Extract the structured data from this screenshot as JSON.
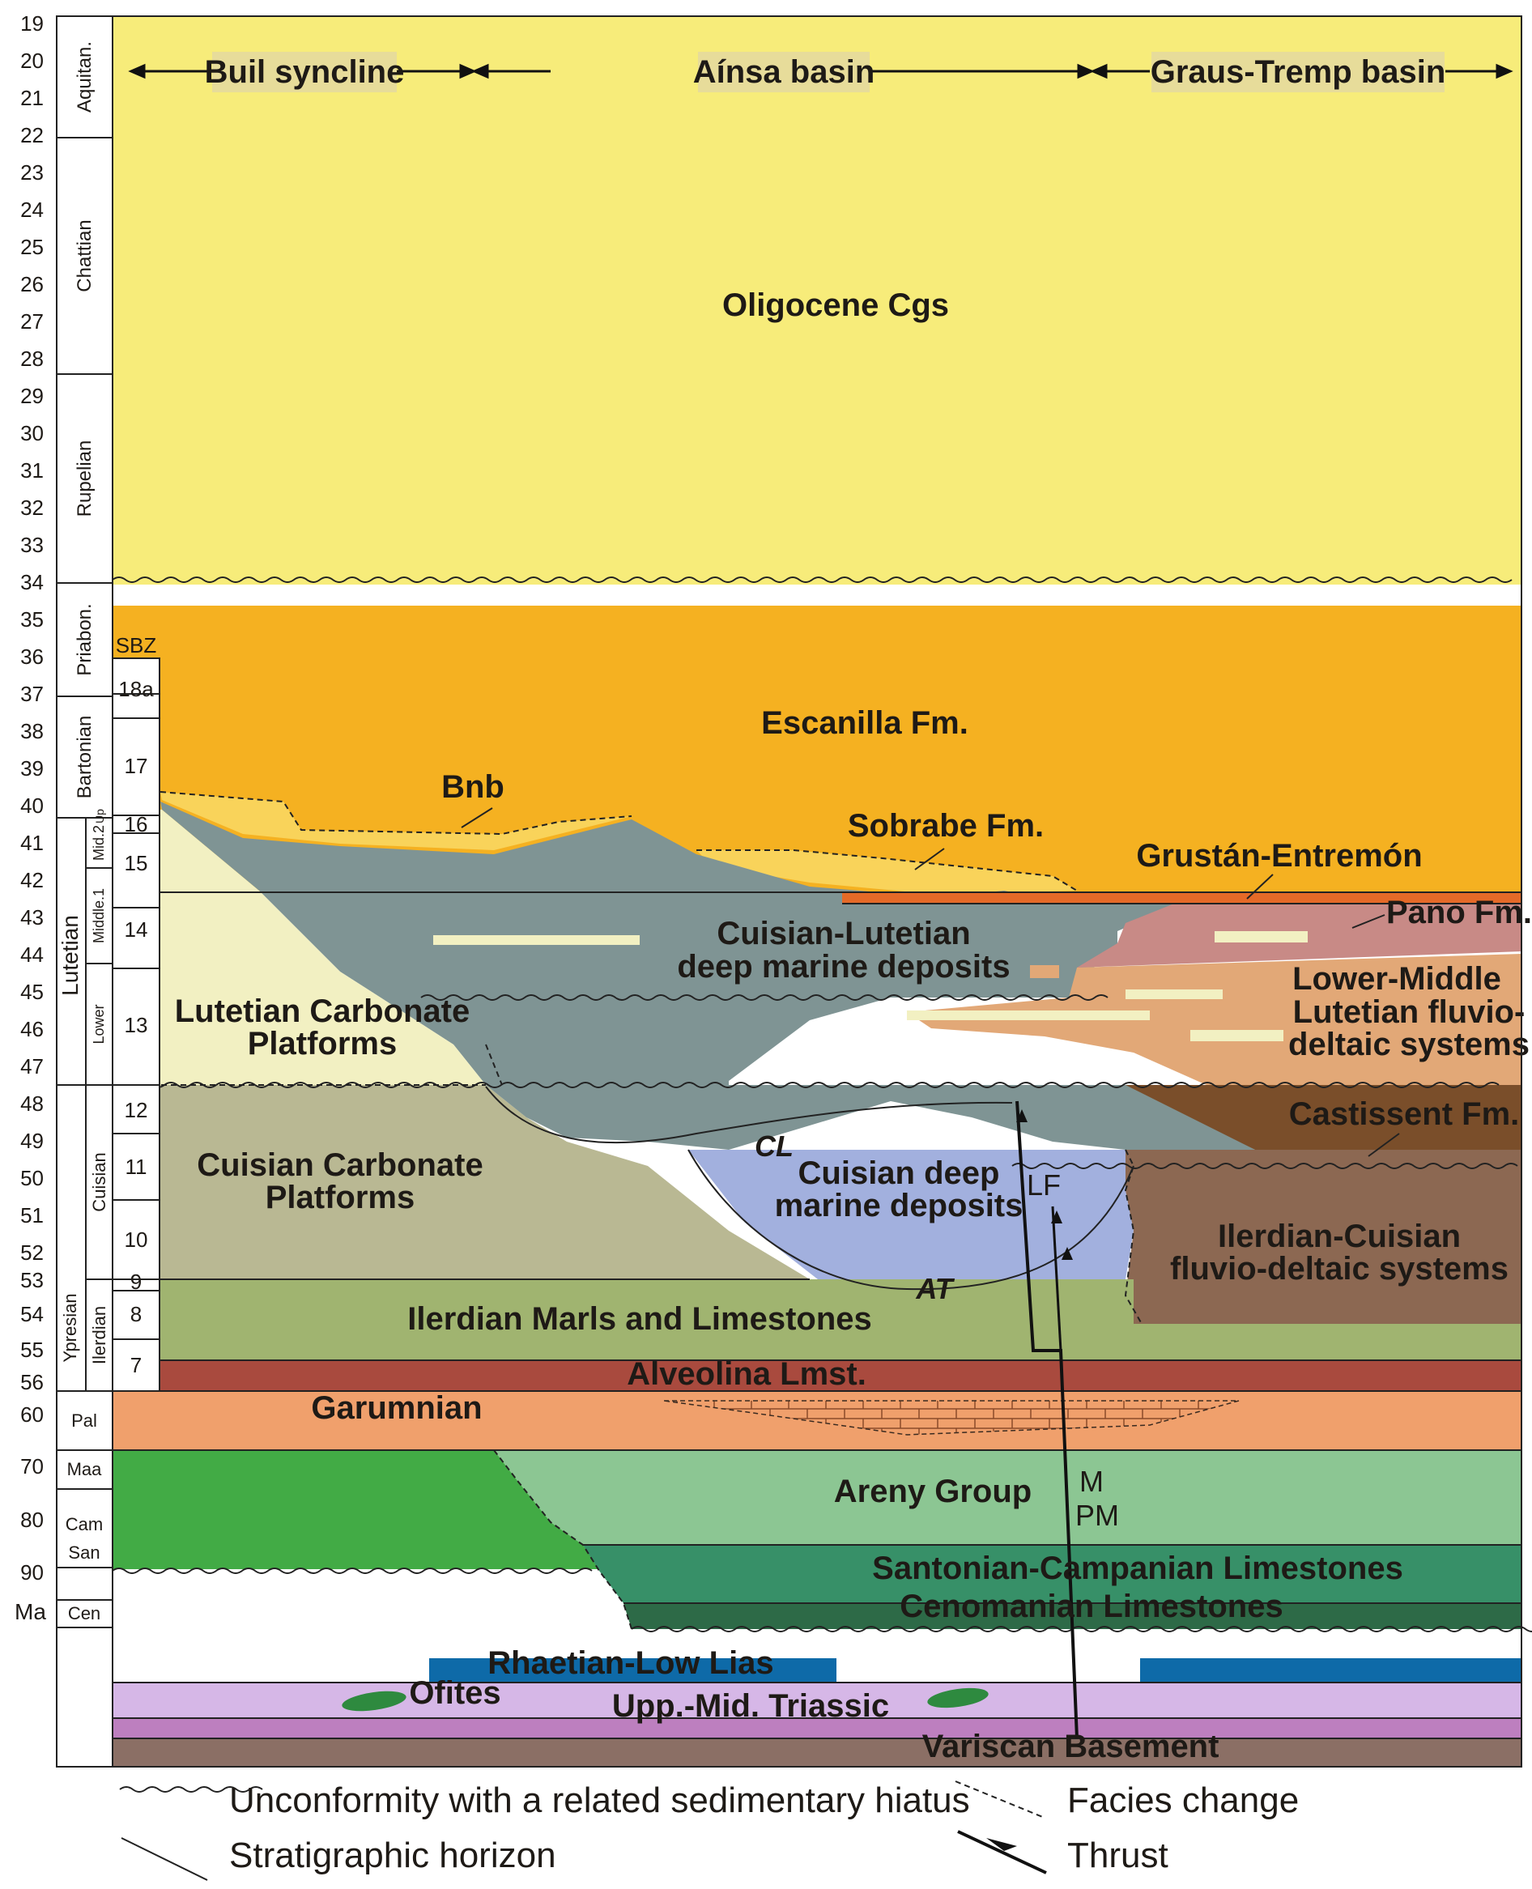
{
  "time_axis": {
    "unit_label": "Ma",
    "ticks": [
      "19",
      "20",
      "21",
      "22",
      "23",
      "24",
      "25",
      "26",
      "27",
      "28",
      "29",
      "30",
      "31",
      "32",
      "33",
      "34",
      "35",
      "36",
      "37",
      "38",
      "39",
      "40",
      "41",
      "42",
      "43",
      "44",
      "45",
      "46",
      "47",
      "48",
      "49",
      "50",
      "51",
      "52",
      "53",
      "54",
      "55",
      "56",
      "60",
      "70",
      "80",
      "90"
    ]
  },
  "stages": [
    "Aquitan.",
    "Chattian",
    "Rupelian",
    "Priabon.",
    "Bartonian",
    "Mid.2",
    "Up",
    "Middle.1",
    "Lower",
    "Cuisian",
    "Ilerdian",
    "Pal",
    "Maa",
    "Cam",
    "San",
    "Cen"
  ],
  "epochs": [
    "Lutetian",
    "Ypresian"
  ],
  "sbz": {
    "header": "SBZ",
    "zones": [
      "18a",
      "17",
      "16",
      "15",
      "14",
      "13",
      "12",
      "11",
      "10",
      "9",
      "8",
      "7"
    ]
  },
  "basins": [
    "Buil syncline",
    "Aínsa basin",
    "Graus-Tremp basin"
  ],
  "units": {
    "oligocene": "Oligocene Cgs",
    "escanilla": "Escanilla Fm.",
    "bnb": "Bnb",
    "sobrabe": "Sobrabe Fm.",
    "grustan": "Grustán-Entremón",
    "pano": "Pano Fm.",
    "cuisian_lutetian_1": "Cuisian-Lutetian",
    "cuisian_lutetian_2": "deep marine deposits",
    "lutetian_platforms_1": "Lutetian Carbonate",
    "lutetian_platforms_2": "Platforms",
    "lower_middle_1": "Lower-Middle",
    "lower_middle_2": "Lutetian fluvio-",
    "lower_middle_3": "deltaic systems",
    "castissent": "Castissent Fm.",
    "cuisian_platforms_1": "Cuisian Carbonate",
    "cuisian_platforms_2": "Platforms",
    "cuisian_deep_1": "Cuisian deep",
    "cuisian_deep_2": "marine deposits",
    "ilerdian_cuisian_1": "Ilerdian-Cuisian",
    "ilerdian_cuisian_2": "fluvio-deltaic systems",
    "ilerdian_marls": "Ilerdian Marls and Limestones",
    "alveolina": "Alveolina Lmst.",
    "garumnian": "Garumnian",
    "areny": "Areny Group",
    "santonian": "Santonian-Campanian Limestones",
    "cenomanian": "Cenomanian Limestones",
    "rhaetian": "Rhaetian-Low Lias",
    "ofites": "Ofites",
    "triassic": "Upp.-Mid. Triassic",
    "variscan": "Variscan Basement"
  },
  "markers": {
    "cl": "CL",
    "at": "AT",
    "lf": "LF",
    "m": "M",
    "pm": "PM"
  },
  "legend": {
    "unconformity": "Unconformity with a related sedimentary hiatus",
    "horizon": "Stratigraphic horizon",
    "facies": "Facies change",
    "thrust": "Thrust"
  },
  "colors": {
    "oligocene": "#f7ec7a",
    "escanilla": "#f5b121",
    "sobrabe": "#f9d35a",
    "grustan": "#e56a28",
    "pano": "#c88a86",
    "deep_marine": "#7f9494",
    "lutetian_platform": "#f2f0c2",
    "lutetian_fluvio": "#e2a877",
    "castissent": "#7a4e2a",
    "cuisian_platform": "#b9b893",
    "cuisian_deep": "#a2b0de",
    "ilerdian_fluvio": "#8c6852",
    "ilerdian_marls": "#a0b470",
    "alveolina": "#a94a3e",
    "garumnian": "#f0a06c",
    "areny": "#8cc693",
    "upper_cret_green": "#42ab45",
    "santonian": "#379068",
    "cenomanian": "#2d6a47",
    "rhaetian": "#0e6aa8",
    "triassic": "#d6b7e7",
    "triassic_lower": "#bd7fbf",
    "variscan": "#8b6f65",
    "ofites": "#2e8a3f"
  }
}
